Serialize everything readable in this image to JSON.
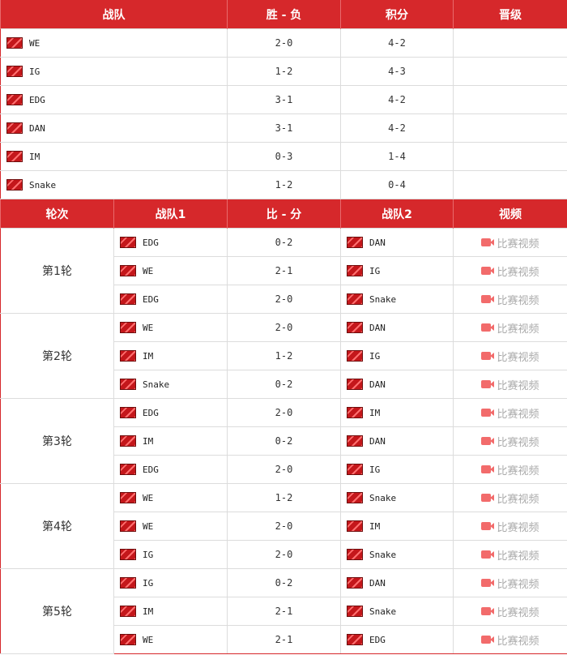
{
  "standings": {
    "headers": [
      "战队",
      "胜 - 负",
      "积分",
      "晋级"
    ],
    "rows": [
      {
        "team": "WE",
        "record": "2-0",
        "points": "4-2",
        "advance": ""
      },
      {
        "team": "IG",
        "record": "1-2",
        "points": "4-3",
        "advance": ""
      },
      {
        "team": "EDG",
        "record": "3-1",
        "points": "4-2",
        "advance": ""
      },
      {
        "team": "DAN",
        "record": "3-1",
        "points": "4-2",
        "advance": ""
      },
      {
        "team": "IM",
        "record": "0-3",
        "points": "1-4",
        "advance": ""
      },
      {
        "team": "Snake",
        "record": "1-2",
        "points": "0-4",
        "advance": ""
      }
    ]
  },
  "schedule": {
    "headers": [
      "轮次",
      "战队1",
      "比 - 分",
      "战队2",
      "视频"
    ],
    "video_label": "比赛视频",
    "rounds": [
      {
        "label": "第1轮",
        "matches": [
          {
            "team1": "EDG",
            "score": "0-2",
            "team2": "DAN"
          },
          {
            "team1": "WE",
            "score": "2-1",
            "team2": "IG"
          },
          {
            "team1": "EDG",
            "score": "2-0",
            "team2": "Snake"
          }
        ]
      },
      {
        "label": "第2轮",
        "matches": [
          {
            "team1": "WE",
            "score": "2-0",
            "team2": "DAN"
          },
          {
            "team1": "IM",
            "score": "1-2",
            "team2": "IG"
          },
          {
            "team1": "Snake",
            "score": "0-2",
            "team2": "DAN"
          }
        ]
      },
      {
        "label": "第3轮",
        "matches": [
          {
            "team1": "EDG",
            "score": "2-0",
            "team2": "IM"
          },
          {
            "team1": "IM",
            "score": "0-2",
            "team2": "DAN"
          },
          {
            "team1": "EDG",
            "score": "2-0",
            "team2": "IG"
          }
        ]
      },
      {
        "label": "第4轮",
        "matches": [
          {
            "team1": "WE",
            "score": "1-2",
            "team2": "Snake"
          },
          {
            "team1": "WE",
            "score": "2-0",
            "team2": "IM"
          },
          {
            "team1": "IG",
            "score": "2-0",
            "team2": "Snake"
          }
        ]
      },
      {
        "label": "第5轮",
        "matches": [
          {
            "team1": "IG",
            "score": "0-2",
            "team2": "DAN"
          },
          {
            "team1": "IM",
            "score": "2-1",
            "team2": "Snake"
          },
          {
            "team1": "WE",
            "score": "2-1",
            "team2": "EDG"
          }
        ]
      }
    ]
  }
}
